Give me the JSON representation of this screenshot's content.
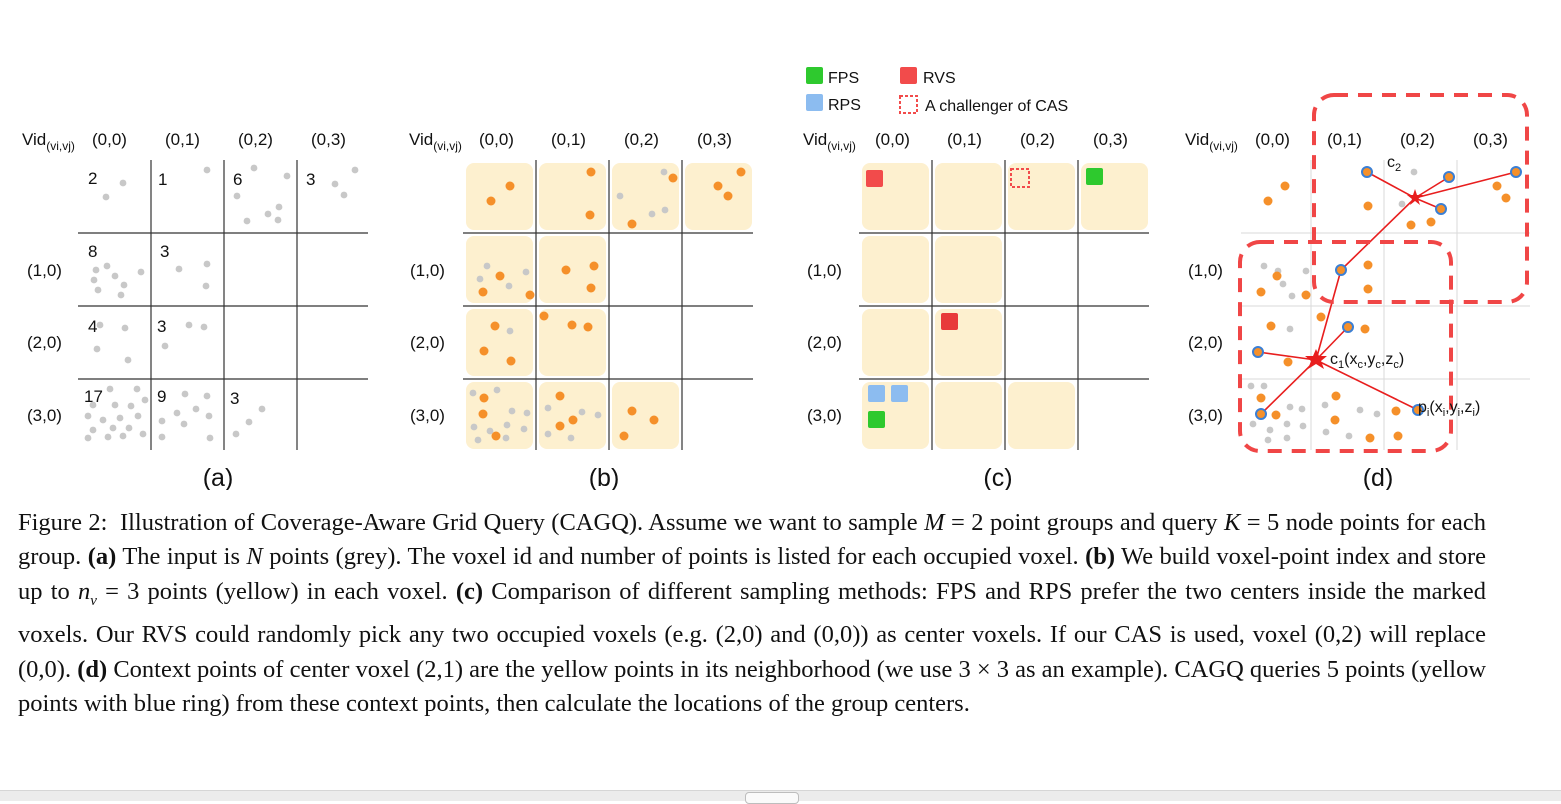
{
  "figure": {
    "legend": {
      "fps": "FPS",
      "rvs": "RVS",
      "rps": "RPS",
      "cas": "A challenger of CAS"
    },
    "row_header": "Vid",
    "row_header_sub": "(vi,vj)",
    "col_labels": [
      "(0,0)",
      "(0,1)",
      "(0,2)",
      "(0,3)"
    ],
    "row_labels": [
      "(1,0)",
      "(2,0)",
      "(3,0)"
    ],
    "panel_labels": [
      "(a)",
      "(b)",
      "(c)",
      "(d)"
    ],
    "panel_a_counts": [
      "2",
      "1",
      "6",
      "3",
      "8",
      "3",
      "4",
      "3",
      "17",
      "9",
      "3"
    ],
    "panel_d_labels": {
      "c2": "c",
      "c2_sub": "2",
      "c1": "c",
      "c1_sub": "1",
      "c1_coords_open": "(x",
      "c1_xs": "c",
      "c1_comma1": ",y",
      "c1_ys": "c",
      "c1_comma2": ",z",
      "c1_zs": "c",
      "c1_close": ")",
      "pi": "p",
      "pi_sub": "i",
      "pi_open": "(x",
      "pi_xs": "i",
      "pi_comma1": ",y",
      "pi_ys": "i",
      "pi_comma2": ",z",
      "pi_zs": "i",
      "pi_close": ")"
    },
    "colors": {
      "grey_point": "#c8c8c8",
      "yellow_point": "#f5902a",
      "voxel_fill": "#fdf0cf",
      "fps": "#2ec92e",
      "rvs": "#f24b4b",
      "rps": "#8cbcf0",
      "neighborhood": "#f04646",
      "blue_ring": "#3b7fd4"
    }
  },
  "caption": {
    "lead": "Figure 2:",
    "intro": "Illustration of Coverage-Aware Grid Query (CAGQ). Assume we want to sample",
    "M_var": "M",
    "M_eq": " = 2 point groups and query",
    "K_var": "K",
    "K_eq": " = 5 node points for each group.",
    "a_tag": "(a)",
    "a_text_1": "The input is",
    "N_var": "N",
    "a_text_2": "points (grey). The voxel id and number of points is listed for each occupied voxel.",
    "b_tag": "(b)",
    "b_text_1": "We build voxel-point index and store up to",
    "nv_var": "n",
    "nv_sub": "v",
    "b_text_2": " = 3 points (yellow) in each voxel.",
    "c_tag": "(c)",
    "c_text": "Comparison of different sampling methods: FPS and RPS prefer the two centers inside the marked voxels. Our RVS could randomly pick any two occupied voxels (e.g. (2,0) and (0,0)) as center voxels. If our CAS is used, voxel (0,2) will replace (0,0).",
    "d_tag": "(d)",
    "d_text": "Context points of center voxel (2,1) are the yellow points in its neighborhood (we use 3 × 3 as an example). CAGQ queries 5 points (yellow points with blue ring) from these context points, then calculate the locations of the group centers."
  }
}
